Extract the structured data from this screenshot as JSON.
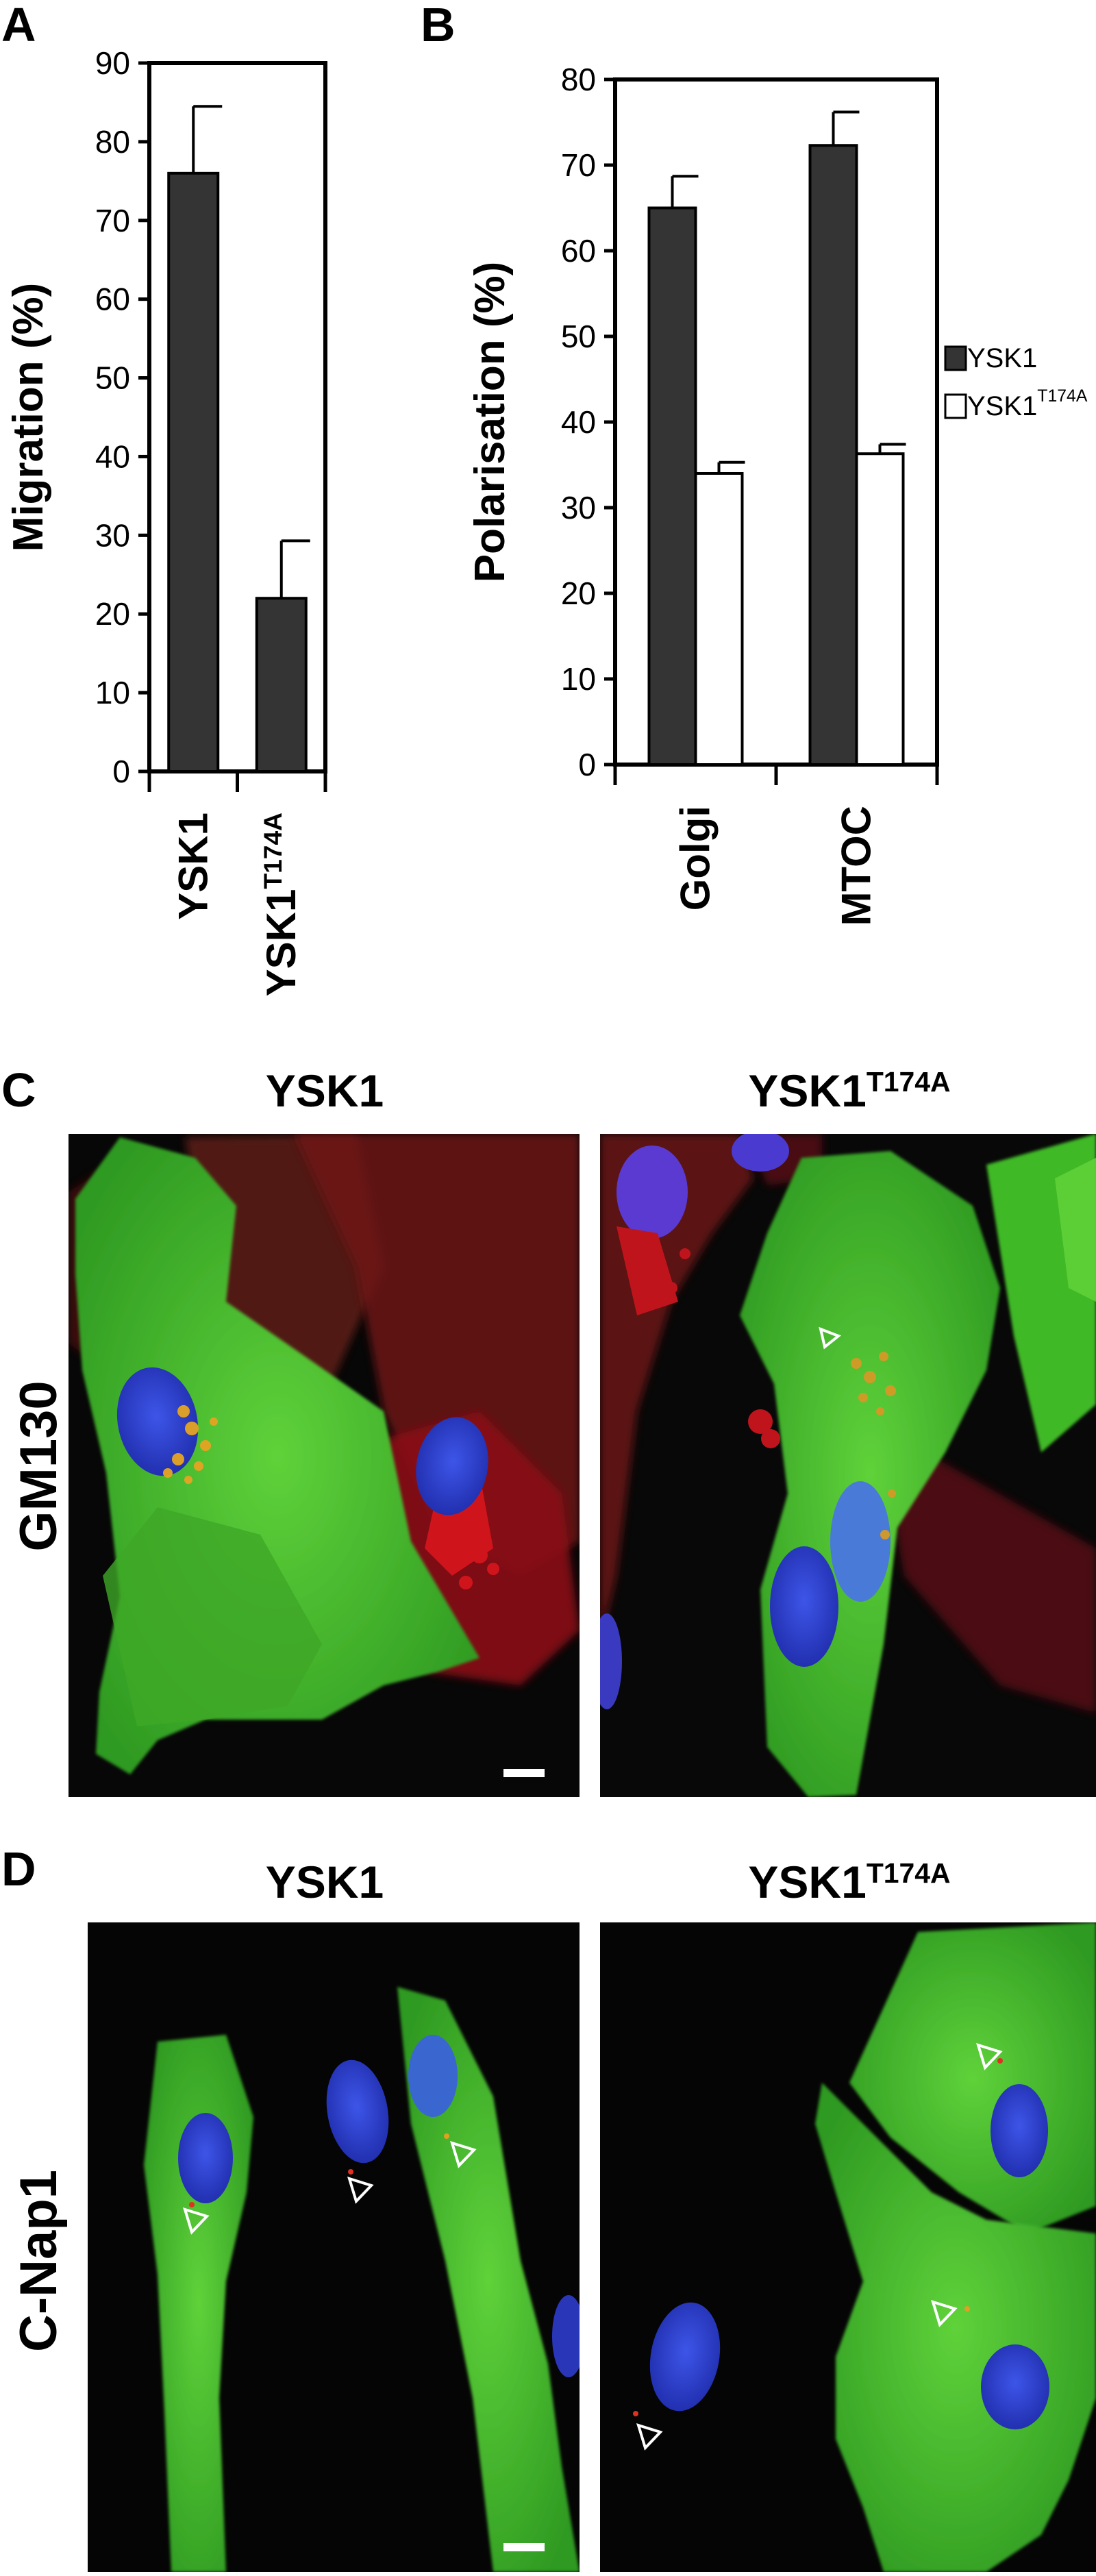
{
  "panels": {
    "a_letter": "A",
    "b_letter": "B",
    "c_letter": "C",
    "d_letter": "D"
  },
  "chart_data": [
    {
      "type": "bar",
      "panel": "A",
      "ylabel": "Migration (%)",
      "ylim": [
        0,
        90
      ],
      "yticks": [
        0,
        10,
        20,
        30,
        40,
        50,
        60,
        70,
        80,
        90
      ],
      "categories": [
        {
          "base": "YSK1",
          "sup": ""
        },
        {
          "base": "YSK1",
          "sup": "T174A"
        }
      ],
      "series": [
        {
          "values": [
            76,
            22
          ],
          "errors": [
            8.5,
            7.3
          ],
          "color": "#343434"
        }
      ],
      "grid": false
    },
    {
      "type": "bar",
      "panel": "B",
      "ylabel": "Polarisation (%)",
      "ylim": [
        0,
        80
      ],
      "yticks": [
        0,
        10,
        20,
        30,
        40,
        50,
        60,
        70,
        80
      ],
      "categories": [
        "Golgi",
        "MTOC"
      ],
      "series": [
        {
          "name": "YSK1",
          "name_sup": "",
          "values": [
            65,
            72.3
          ],
          "errors": [
            3.7,
            3.9
          ],
          "color": "#343434"
        },
        {
          "name": "YSK1",
          "name_sup": "T174A",
          "values": [
            34,
            36.3
          ],
          "errors": [
            1.3,
            1.1
          ],
          "color": "#ffffff"
        }
      ],
      "legend": "right",
      "grid": false
    }
  ],
  "panel_c": {
    "row_label": "GM130",
    "col_left": {
      "base": "YSK1",
      "sup": ""
    },
    "col_right": {
      "base": "YSK1",
      "sup": "T174A"
    }
  },
  "panel_d": {
    "row_label": "C-Nap1",
    "col_left": {
      "base": "YSK1",
      "sup": ""
    },
    "col_right": {
      "base": "YSK1",
      "sup": "T174A"
    }
  },
  "colors": {
    "bar_dark": "#343434",
    "bar_light": "#ffffff",
    "micro_background": "#060606",
    "cell_green": "#3fbf2a",
    "cell_red": "#b8141c",
    "nucleus_blue": "#2d3fd0",
    "golgi_orange": "#e5a020"
  }
}
